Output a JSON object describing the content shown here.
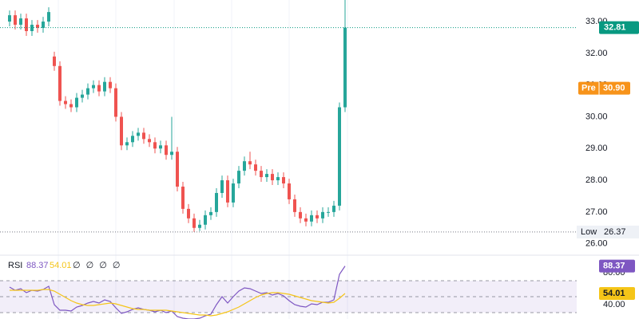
{
  "chart_data": [
    {
      "type": "candlestick",
      "open": [
        33.0,
        33.2,
        32.9,
        33.1,
        32.7,
        32.9,
        32.8,
        33.0,
        31.9,
        31.6,
        30.5,
        30.4,
        30.3,
        30.6,
        30.7,
        30.9,
        31.0,
        30.8,
        31.1,
        30.9,
        30.0,
        29.1,
        29.2,
        29.4,
        29.5,
        29.3,
        29.2,
        29.0,
        29.1,
        28.8,
        28.9,
        27.8,
        27.1,
        26.8,
        26.5,
        26.6,
        26.9,
        27.0,
        27.6,
        28.0,
        27.3,
        27.9,
        28.3,
        28.6,
        28.5,
        28.3,
        28.1,
        28.2,
        28.0,
        28.1,
        27.9,
        27.4,
        27.0,
        26.8,
        26.7,
        26.9,
        26.8,
        27.0,
        27.0,
        27.2,
        30.3
      ],
      "high": [
        33.35,
        33.35,
        33.25,
        33.25,
        33.05,
        33.05,
        33.15,
        33.45,
        32.05,
        31.75,
        30.65,
        30.55,
        30.75,
        30.85,
        31.05,
        31.15,
        31.15,
        31.25,
        31.25,
        31.05,
        30.15,
        29.35,
        29.55,
        29.65,
        29.65,
        29.45,
        29.35,
        29.25,
        29.25,
        30.0,
        29.05,
        27.95,
        27.25,
        26.95,
        26.75,
        27.05,
        27.15,
        27.75,
        28.15,
        28.15,
        28.05,
        28.45,
        28.75,
        28.9,
        28.65,
        28.45,
        28.35,
        28.35,
        28.25,
        28.25,
        28.05,
        27.55,
        27.15,
        26.95,
        27.05,
        27.05,
        27.15,
        27.15,
        27.35,
        30.45,
        33.68
      ],
      "low": [
        32.85,
        32.75,
        32.75,
        32.55,
        32.55,
        32.65,
        32.65,
        32.85,
        31.45,
        30.35,
        30.25,
        30.15,
        30.15,
        30.45,
        30.55,
        30.75,
        30.65,
        30.65,
        30.75,
        29.85,
        28.95,
        28.95,
        29.05,
        29.25,
        29.15,
        29.05,
        28.85,
        28.85,
        28.65,
        28.65,
        27.65,
        26.95,
        26.65,
        26.37,
        26.4,
        26.45,
        26.75,
        26.85,
        27.45,
        27.15,
        27.15,
        27.75,
        28.15,
        28.35,
        28.15,
        27.95,
        27.95,
        27.85,
        27.85,
        27.75,
        27.25,
        26.85,
        26.65,
        26.55,
        26.55,
        26.65,
        26.65,
        26.85,
        26.85,
        27.05,
        30.15
      ],
      "close": [
        33.2,
        32.9,
        33.1,
        32.7,
        32.9,
        32.8,
        33.0,
        33.3,
        31.6,
        30.5,
        30.4,
        30.3,
        30.6,
        30.7,
        30.9,
        31.0,
        30.8,
        31.1,
        30.9,
        30.0,
        29.1,
        29.2,
        29.4,
        29.5,
        29.3,
        29.2,
        29.0,
        29.1,
        28.8,
        28.9,
        27.8,
        27.1,
        26.8,
        26.5,
        26.6,
        26.9,
        27.0,
        27.6,
        28.0,
        27.3,
        27.9,
        28.3,
        28.6,
        28.5,
        28.3,
        28.1,
        28.2,
        28.0,
        28.1,
        27.9,
        27.4,
        27.0,
        26.8,
        26.7,
        26.9,
        26.8,
        27.0,
        27.0,
        27.2,
        30.3,
        32.81
      ],
      "up_color": "#26a69a",
      "down_color": "#ef5350",
      "ylim": [
        25.69,
        33.68
      ],
      "yticks": [
        {
          "value": 26,
          "label": "26.00"
        },
        {
          "value": 27,
          "label": "27.00"
        },
        {
          "value": 28,
          "label": "28.00"
        },
        {
          "value": 29,
          "label": "29.00"
        },
        {
          "value": 30,
          "label": "30.00"
        },
        {
          "value": 31,
          "label": "31.00"
        },
        {
          "value": 32,
          "label": "32.00"
        },
        {
          "value": 33,
          "label": "33.00"
        }
      ],
      "last_price": {
        "value": 32.81,
        "color": "#089981"
      },
      "pre_market": {
        "label": "Pre",
        "value": 30.9,
        "value_label": "30.90",
        "color": "#f7931a"
      },
      "low_price": {
        "label": "Low",
        "value": 26.37
      }
    },
    {
      "type": "line",
      "title": "RSI",
      "placeholders": "∅ ∅ ∅ ∅",
      "series": [
        {
          "color": "#7e57c2",
          "values": [
            62,
            58,
            60,
            55,
            58,
            57,
            59,
            63,
            40,
            33,
            33,
            32,
            37,
            39,
            42,
            44,
            42,
            46,
            44,
            36,
            29,
            31,
            34,
            36,
            34,
            33,
            31,
            33,
            30,
            32,
            25,
            23,
            22,
            22,
            23,
            26,
            28,
            40,
            50,
            42,
            50,
            57,
            61,
            60,
            57,
            54,
            55,
            52,
            54,
            51,
            45,
            40,
            38,
            37,
            41,
            40,
            43,
            43,
            46,
            78,
            88.37
          ]
        },
        {
          "color": "#f5c518",
          "values": [
            58,
            58,
            58,
            58,
            58,
            58,
            59,
            59,
            57,
            53,
            49,
            45,
            42,
            40,
            39,
            39,
            40,
            41,
            42,
            41,
            39,
            37,
            35,
            34,
            34,
            33,
            33,
            33,
            33,
            32,
            31,
            30,
            29,
            28,
            27,
            27,
            26,
            27,
            29,
            31,
            34,
            37,
            41,
            45,
            49,
            52,
            54,
            55,
            55,
            54,
            53,
            51,
            49,
            47,
            45,
            44,
            43,
            42,
            43,
            48,
            54.01
          ]
        }
      ],
      "ylim": [
        22,
        100
      ],
      "yticks": [
        {
          "value": 80,
          "label": "80.00"
        },
        {
          "value": 40,
          "label": "40.00"
        }
      ],
      "band": [
        30,
        70
      ],
      "band_lines": [
        70,
        50,
        30
      ]
    }
  ]
}
